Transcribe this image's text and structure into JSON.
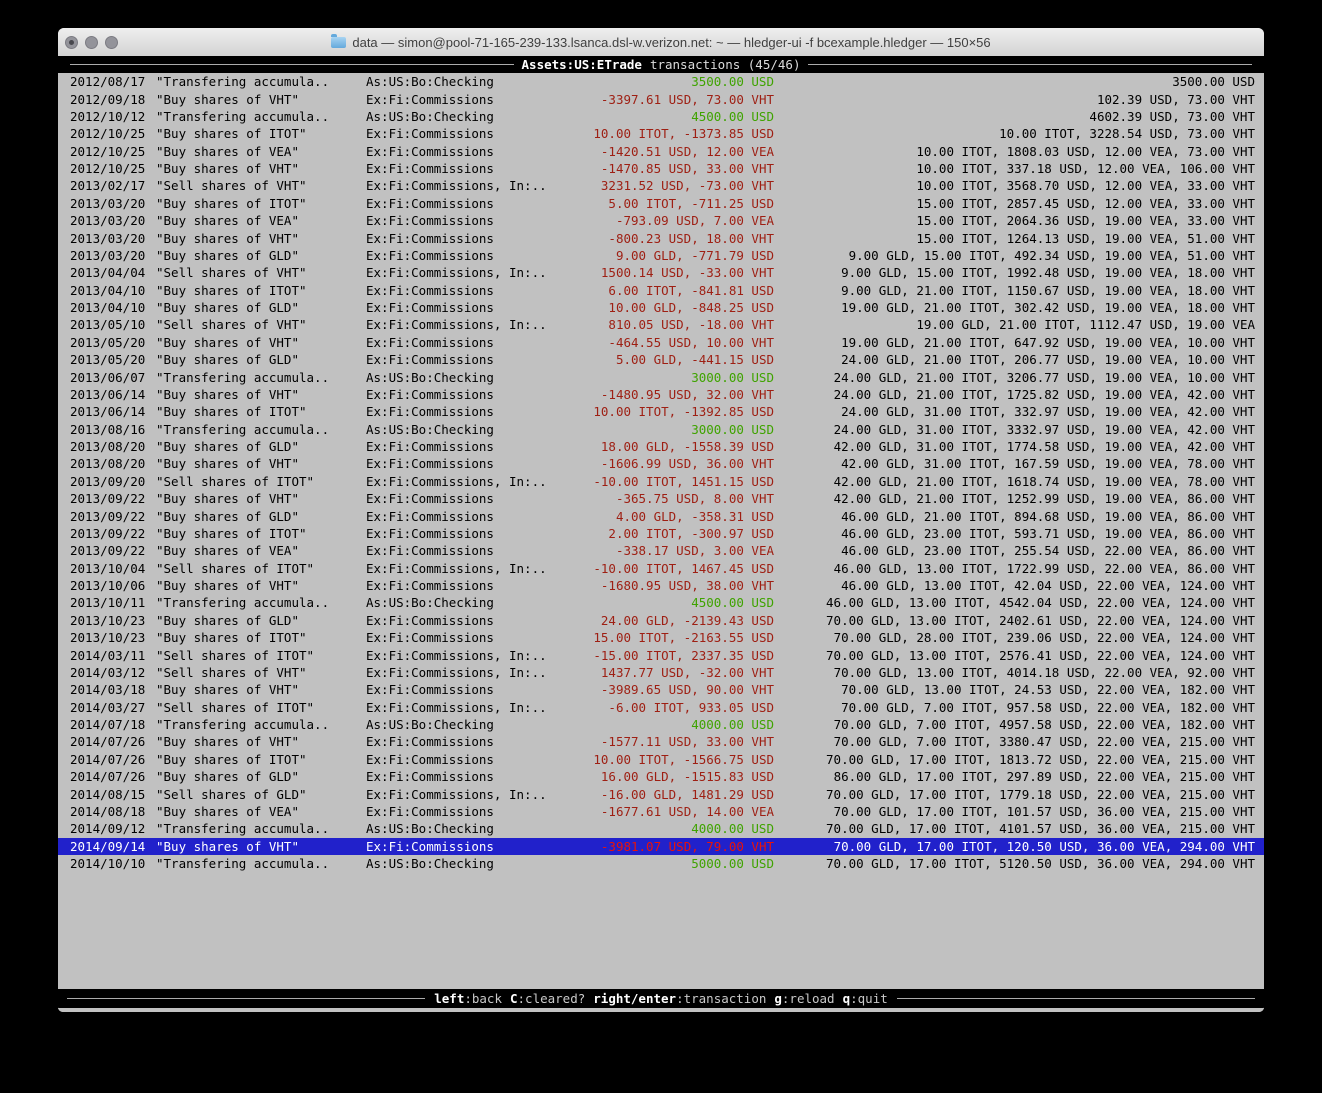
{
  "window": {
    "title": "data — simon@pool-71-165-239-133.lsanca.dsl-w.verizon.net: ~ — hledger-ui -f bcexample.hledger — 150×56"
  },
  "header": {
    "account": "Assets:US:ETrade",
    "label": "transactions (45/46)"
  },
  "help_bar": {
    "keys": [
      {
        "key": "left",
        "desc": ":back"
      },
      {
        "key": "C",
        "desc": ":cleared?"
      },
      {
        "key": "right/enter",
        "desc": ":transaction"
      },
      {
        "key": "g",
        "desc": ":reload"
      },
      {
        "key": "q",
        "desc": ":quit"
      }
    ]
  },
  "colors": {
    "terminal_bg": "#C1C1C1",
    "bar_bg": "#000000",
    "selection_bg": "#2121CB",
    "negative_amount": "#9E1F13",
    "positive_amount": "#3FA300",
    "selected_negative_amount": "#E81309"
  },
  "register": {
    "rows": [
      {
        "date": "2012/08/17",
        "description": "\"Transfering accumula..",
        "account": "As:US:Bo:Checking",
        "amount": "3500.00 USD",
        "amount_color": "green",
        "balance": "3500.00 USD"
      },
      {
        "date": "2012/09/18",
        "description": "\"Buy shares of VHT\"",
        "account": "Ex:Fi:Commissions",
        "amount": "-3397.61 USD, 73.00 VHT",
        "amount_color": "red",
        "balance": "102.39 USD, 73.00 VHT"
      },
      {
        "date": "2012/10/12",
        "description": "\"Transfering accumula..",
        "account": "As:US:Bo:Checking",
        "amount": "4500.00 USD",
        "amount_color": "green",
        "balance": "4602.39 USD, 73.00 VHT"
      },
      {
        "date": "2012/10/25",
        "description": "\"Buy shares of ITOT\"",
        "account": "Ex:Fi:Commissions",
        "amount": "10.00 ITOT, -1373.85 USD",
        "amount_color": "red",
        "balance": "10.00 ITOT, 3228.54 USD, 73.00 VHT"
      },
      {
        "date": "2012/10/25",
        "description": "\"Buy shares of VEA\"",
        "account": "Ex:Fi:Commissions",
        "amount": "-1420.51 USD, 12.00 VEA",
        "amount_color": "red",
        "balance": "10.00 ITOT, 1808.03 USD, 12.00 VEA, 73.00 VHT"
      },
      {
        "date": "2012/10/25",
        "description": "\"Buy shares of VHT\"",
        "account": "Ex:Fi:Commissions",
        "amount": "-1470.85 USD, 33.00 VHT",
        "amount_color": "red",
        "balance": "10.00 ITOT, 337.18 USD, 12.00 VEA, 106.00 VHT"
      },
      {
        "date": "2013/02/17",
        "description": "\"Sell shares of VHT\"",
        "account": "Ex:Fi:Commissions, In:..",
        "amount": "3231.52 USD, -73.00 VHT",
        "amount_color": "red",
        "balance": "10.00 ITOT, 3568.70 USD, 12.00 VEA, 33.00 VHT"
      },
      {
        "date": "2013/03/20",
        "description": "\"Buy shares of ITOT\"",
        "account": "Ex:Fi:Commissions",
        "amount": "5.00 ITOT, -711.25 USD",
        "amount_color": "red",
        "balance": "15.00 ITOT, 2857.45 USD, 12.00 VEA, 33.00 VHT"
      },
      {
        "date": "2013/03/20",
        "description": "\"Buy shares of VEA\"",
        "account": "Ex:Fi:Commissions",
        "amount": "-793.09 USD, 7.00 VEA",
        "amount_color": "red",
        "balance": "15.00 ITOT, 2064.36 USD, 19.00 VEA, 33.00 VHT"
      },
      {
        "date": "2013/03/20",
        "description": "\"Buy shares of VHT\"",
        "account": "Ex:Fi:Commissions",
        "amount": "-800.23 USD, 18.00 VHT",
        "amount_color": "red",
        "balance": "15.00 ITOT, 1264.13 USD, 19.00 VEA, 51.00 VHT"
      },
      {
        "date": "2013/03/20",
        "description": "\"Buy shares of GLD\"",
        "account": "Ex:Fi:Commissions",
        "amount": "9.00 GLD, -771.79 USD",
        "amount_color": "red",
        "balance": "9.00 GLD, 15.00 ITOT, 492.34 USD, 19.00 VEA, 51.00 VHT"
      },
      {
        "date": "2013/04/04",
        "description": "\"Sell shares of VHT\"",
        "account": "Ex:Fi:Commissions, In:..",
        "amount": "1500.14 USD, -33.00 VHT",
        "amount_color": "red",
        "balance": "9.00 GLD, 15.00 ITOT, 1992.48 USD, 19.00 VEA, 18.00 VHT"
      },
      {
        "date": "2013/04/10",
        "description": "\"Buy shares of ITOT\"",
        "account": "Ex:Fi:Commissions",
        "amount": "6.00 ITOT, -841.81 USD",
        "amount_color": "red",
        "balance": "9.00 GLD, 21.00 ITOT, 1150.67 USD, 19.00 VEA, 18.00 VHT"
      },
      {
        "date": "2013/04/10",
        "description": "\"Buy shares of GLD\"",
        "account": "Ex:Fi:Commissions",
        "amount": "10.00 GLD, -848.25 USD",
        "amount_color": "red",
        "balance": "19.00 GLD, 21.00 ITOT, 302.42 USD, 19.00 VEA, 18.00 VHT"
      },
      {
        "date": "2013/05/10",
        "description": "\"Sell shares of VHT\"",
        "account": "Ex:Fi:Commissions, In:..",
        "amount": "810.05 USD, -18.00 VHT",
        "amount_color": "red",
        "balance": "19.00 GLD, 21.00 ITOT, 1112.47 USD, 19.00 VEA"
      },
      {
        "date": "2013/05/20",
        "description": "\"Buy shares of VHT\"",
        "account": "Ex:Fi:Commissions",
        "amount": "-464.55 USD, 10.00 VHT",
        "amount_color": "red",
        "balance": "19.00 GLD, 21.00 ITOT, 647.92 USD, 19.00 VEA, 10.00 VHT"
      },
      {
        "date": "2013/05/20",
        "description": "\"Buy shares of GLD\"",
        "account": "Ex:Fi:Commissions",
        "amount": "5.00 GLD, -441.15 USD",
        "amount_color": "red",
        "balance": "24.00 GLD, 21.00 ITOT, 206.77 USD, 19.00 VEA, 10.00 VHT"
      },
      {
        "date": "2013/06/07",
        "description": "\"Transfering accumula..",
        "account": "As:US:Bo:Checking",
        "amount": "3000.00 USD",
        "amount_color": "green",
        "balance": "24.00 GLD, 21.00 ITOT, 3206.77 USD, 19.00 VEA, 10.00 VHT"
      },
      {
        "date": "2013/06/14",
        "description": "\"Buy shares of VHT\"",
        "account": "Ex:Fi:Commissions",
        "amount": "-1480.95 USD, 32.00 VHT",
        "amount_color": "red",
        "balance": "24.00 GLD, 21.00 ITOT, 1725.82 USD, 19.00 VEA, 42.00 VHT"
      },
      {
        "date": "2013/06/14",
        "description": "\"Buy shares of ITOT\"",
        "account": "Ex:Fi:Commissions",
        "amount": "10.00 ITOT, -1392.85 USD",
        "amount_color": "red",
        "balance": "24.00 GLD, 31.00 ITOT, 332.97 USD, 19.00 VEA, 42.00 VHT"
      },
      {
        "date": "2013/08/16",
        "description": "\"Transfering accumula..",
        "account": "As:US:Bo:Checking",
        "amount": "3000.00 USD",
        "amount_color": "green",
        "balance": "24.00 GLD, 31.00 ITOT, 3332.97 USD, 19.00 VEA, 42.00 VHT"
      },
      {
        "date": "2013/08/20",
        "description": "\"Buy shares of GLD\"",
        "account": "Ex:Fi:Commissions",
        "amount": "18.00 GLD, -1558.39 USD",
        "amount_color": "red",
        "balance": "42.00 GLD, 31.00 ITOT, 1774.58 USD, 19.00 VEA, 42.00 VHT"
      },
      {
        "date": "2013/08/20",
        "description": "\"Buy shares of VHT\"",
        "account": "Ex:Fi:Commissions",
        "amount": "-1606.99 USD, 36.00 VHT",
        "amount_color": "red",
        "balance": "42.00 GLD, 31.00 ITOT, 167.59 USD, 19.00 VEA, 78.00 VHT"
      },
      {
        "date": "2013/09/20",
        "description": "\"Sell shares of ITOT\"",
        "account": "Ex:Fi:Commissions, In:..",
        "amount": "-10.00 ITOT, 1451.15 USD",
        "amount_color": "red",
        "balance": "42.00 GLD, 21.00 ITOT, 1618.74 USD, 19.00 VEA, 78.00 VHT"
      },
      {
        "date": "2013/09/22",
        "description": "\"Buy shares of VHT\"",
        "account": "Ex:Fi:Commissions",
        "amount": "-365.75 USD, 8.00 VHT",
        "amount_color": "red",
        "balance": "42.00 GLD, 21.00 ITOT, 1252.99 USD, 19.00 VEA, 86.00 VHT"
      },
      {
        "date": "2013/09/22",
        "description": "\"Buy shares of GLD\"",
        "account": "Ex:Fi:Commissions",
        "amount": "4.00 GLD, -358.31 USD",
        "amount_color": "red",
        "balance": "46.00 GLD, 21.00 ITOT, 894.68 USD, 19.00 VEA, 86.00 VHT"
      },
      {
        "date": "2013/09/22",
        "description": "\"Buy shares of ITOT\"",
        "account": "Ex:Fi:Commissions",
        "amount": "2.00 ITOT, -300.97 USD",
        "amount_color": "red",
        "balance": "46.00 GLD, 23.00 ITOT, 593.71 USD, 19.00 VEA, 86.00 VHT"
      },
      {
        "date": "2013/09/22",
        "description": "\"Buy shares of VEA\"",
        "account": "Ex:Fi:Commissions",
        "amount": "-338.17 USD, 3.00 VEA",
        "amount_color": "red",
        "balance": "46.00 GLD, 23.00 ITOT, 255.54 USD, 22.00 VEA, 86.00 VHT"
      },
      {
        "date": "2013/10/04",
        "description": "\"Sell shares of ITOT\"",
        "account": "Ex:Fi:Commissions, In:..",
        "amount": "-10.00 ITOT, 1467.45 USD",
        "amount_color": "red",
        "balance": "46.00 GLD, 13.00 ITOT, 1722.99 USD, 22.00 VEA, 86.00 VHT"
      },
      {
        "date": "2013/10/06",
        "description": "\"Buy shares of VHT\"",
        "account": "Ex:Fi:Commissions",
        "amount": "-1680.95 USD, 38.00 VHT",
        "amount_color": "red",
        "balance": "46.00 GLD, 13.00 ITOT, 42.04 USD, 22.00 VEA, 124.00 VHT"
      },
      {
        "date": "2013/10/11",
        "description": "\"Transfering accumula..",
        "account": "As:US:Bo:Checking",
        "amount": "4500.00 USD",
        "amount_color": "green",
        "balance": "46.00 GLD, 13.00 ITOT, 4542.04 USD, 22.00 VEA, 124.00 VHT"
      },
      {
        "date": "2013/10/23",
        "description": "\"Buy shares of GLD\"",
        "account": "Ex:Fi:Commissions",
        "amount": "24.00 GLD, -2139.43 USD",
        "amount_color": "red",
        "balance": "70.00 GLD, 13.00 ITOT, 2402.61 USD, 22.00 VEA, 124.00 VHT"
      },
      {
        "date": "2013/10/23",
        "description": "\"Buy shares of ITOT\"",
        "account": "Ex:Fi:Commissions",
        "amount": "15.00 ITOT, -2163.55 USD",
        "amount_color": "red",
        "balance": "70.00 GLD, 28.00 ITOT, 239.06 USD, 22.00 VEA, 124.00 VHT"
      },
      {
        "date": "2014/03/11",
        "description": "\"Sell shares of ITOT\"",
        "account": "Ex:Fi:Commissions, In:..",
        "amount": "-15.00 ITOT, 2337.35 USD",
        "amount_color": "red",
        "balance": "70.00 GLD, 13.00 ITOT, 2576.41 USD, 22.00 VEA, 124.00 VHT"
      },
      {
        "date": "2014/03/12",
        "description": "\"Sell shares of VHT\"",
        "account": "Ex:Fi:Commissions, In:..",
        "amount": "1437.77 USD, -32.00 VHT",
        "amount_color": "red",
        "balance": "70.00 GLD, 13.00 ITOT, 4014.18 USD, 22.00 VEA, 92.00 VHT"
      },
      {
        "date": "2014/03/18",
        "description": "\"Buy shares of VHT\"",
        "account": "Ex:Fi:Commissions",
        "amount": "-3989.65 USD, 90.00 VHT",
        "amount_color": "red",
        "balance": "70.00 GLD, 13.00 ITOT, 24.53 USD, 22.00 VEA, 182.00 VHT"
      },
      {
        "date": "2014/03/27",
        "description": "\"Sell shares of ITOT\"",
        "account": "Ex:Fi:Commissions, In:..",
        "amount": "-6.00 ITOT, 933.05 USD",
        "amount_color": "red",
        "balance": "70.00 GLD, 7.00 ITOT, 957.58 USD, 22.00 VEA, 182.00 VHT"
      },
      {
        "date": "2014/07/18",
        "description": "\"Transfering accumula..",
        "account": "As:US:Bo:Checking",
        "amount": "4000.00 USD",
        "amount_color": "green",
        "balance": "70.00 GLD, 7.00 ITOT, 4957.58 USD, 22.00 VEA, 182.00 VHT"
      },
      {
        "date": "2014/07/26",
        "description": "\"Buy shares of VHT\"",
        "account": "Ex:Fi:Commissions",
        "amount": "-1577.11 USD, 33.00 VHT",
        "amount_color": "red",
        "balance": "70.00 GLD, 7.00 ITOT, 3380.47 USD, 22.00 VEA, 215.00 VHT"
      },
      {
        "date": "2014/07/26",
        "description": "\"Buy shares of ITOT\"",
        "account": "Ex:Fi:Commissions",
        "amount": "10.00 ITOT, -1566.75 USD",
        "amount_color": "red",
        "balance": "70.00 GLD, 17.00 ITOT, 1813.72 USD, 22.00 VEA, 215.00 VHT"
      },
      {
        "date": "2014/07/26",
        "description": "\"Buy shares of GLD\"",
        "account": "Ex:Fi:Commissions",
        "amount": "16.00 GLD, -1515.83 USD",
        "amount_color": "red",
        "balance": "86.00 GLD, 17.00 ITOT, 297.89 USD, 22.00 VEA, 215.00 VHT"
      },
      {
        "date": "2014/08/15",
        "description": "\"Sell shares of GLD\"",
        "account": "Ex:Fi:Commissions, In:..",
        "amount": "-16.00 GLD, 1481.29 USD",
        "amount_color": "red",
        "balance": "70.00 GLD, 17.00 ITOT, 1779.18 USD, 22.00 VEA, 215.00 VHT"
      },
      {
        "date": "2014/08/18",
        "description": "\"Buy shares of VEA\"",
        "account": "Ex:Fi:Commissions",
        "amount": "-1677.61 USD, 14.00 VEA",
        "amount_color": "red",
        "balance": "70.00 GLD, 17.00 ITOT, 101.57 USD, 36.00 VEA, 215.00 VHT"
      },
      {
        "date": "2014/09/12",
        "description": "\"Transfering accumula..",
        "account": "As:US:Bo:Checking",
        "amount": "4000.00 USD",
        "amount_color": "green",
        "balance": "70.00 GLD, 17.00 ITOT, 4101.57 USD, 36.00 VEA, 215.00 VHT"
      },
      {
        "date": "2014/09/14",
        "description": "\"Buy shares of VHT\"",
        "account": "Ex:Fi:Commissions",
        "amount": "-3981.07 USD, 79.00 VHT",
        "amount_color": "red",
        "balance": "70.00 GLD, 17.00 ITOT, 120.50 USD, 36.00 VEA, 294.00 VHT",
        "selected": true
      },
      {
        "date": "2014/10/10",
        "description": "\"Transfering accumula..",
        "account": "As:US:Bo:Checking",
        "amount": "5000.00 USD",
        "amount_color": "green",
        "balance": "70.00 GLD, 17.00 ITOT, 5120.50 USD, 36.00 VEA, 294.00 VHT"
      }
    ]
  }
}
